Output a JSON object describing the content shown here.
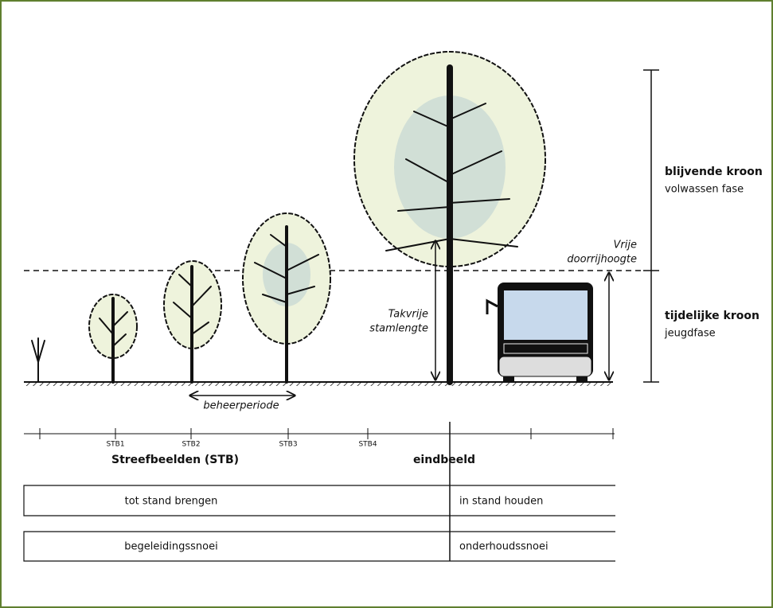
{
  "labels": {
    "crown_permanent": "blijvende kroon",
    "crown_permanent_phase": "volwassen fase",
    "clearance_1": "Vrije",
    "clearance_2": "doorrijhoogte",
    "crown_temporary": "tijdelijke kroon",
    "crown_temporary_phase": "jeugdfase",
    "stem_1": "Takvrije",
    "stem_2": "stamlengte",
    "period": "beheerperiode"
  },
  "timeline": {
    "ticks": [
      "STB1",
      "STB2",
      "STB3",
      "STB4"
    ],
    "left_label": "Streefbeelden (STB)",
    "right_label": "eindbeeld"
  },
  "rows": [
    [
      "tot stand brengen",
      "in stand houden"
    ],
    [
      "begeleidingssnoei",
      "onderhoudssnoei"
    ]
  ]
}
